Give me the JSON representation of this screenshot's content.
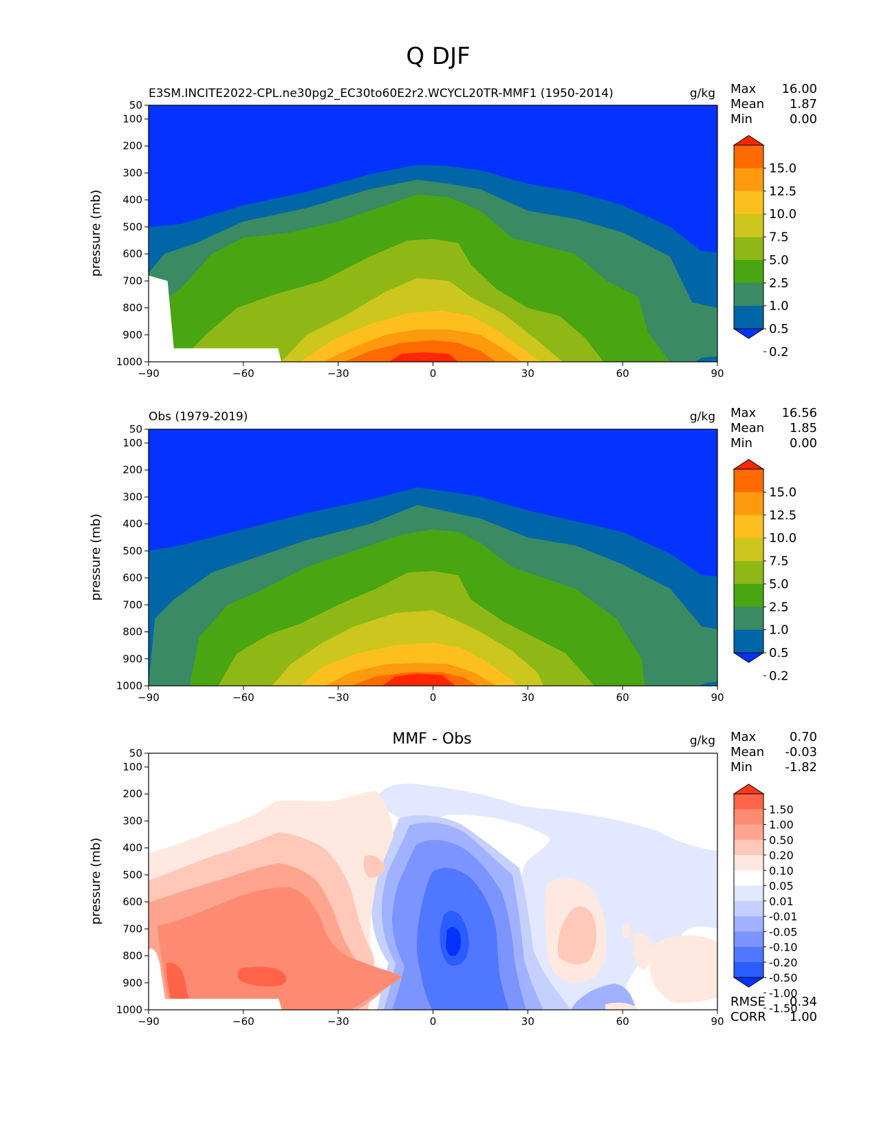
{
  "figure": {
    "title": "Q DJF"
  },
  "colors": {
    "sequential": [
      "#0433ff",
      "#0066a8",
      "#3a8a63",
      "#49a511",
      "#8fb816",
      "#cdc61d",
      "#fdbf1d",
      "#fe9a0e",
      "#fe6a00",
      "#ff2600"
    ],
    "diverging": [
      "#0433ff",
      "#2a5cff",
      "#5077ff",
      "#7b94ff",
      "#a0b2ff",
      "#c5d0ff",
      "#e2e8ff",
      "#ffffff",
      "#ffe8e0",
      "#ffc8b8",
      "#ffa58f",
      "#ff8a72",
      "#ff6449",
      "#ff3a1f"
    ],
    "missing": "#ffffff"
  },
  "chart_data": [
    {
      "type": "heatmap",
      "title": "E3SM.INCITE2022-CPL.ne30pg2_EC30to60E2r2.WCYCL20TR-MMF1 (1950-2014)",
      "units": "g/kg",
      "ylabel": "pressure (mb)",
      "x_ticks": [
        "−90",
        "−60",
        "−30",
        "0",
        "30",
        "60",
        "90"
      ],
      "y_ticks": [
        "50",
        "100",
        "200",
        "300",
        "400",
        "500",
        "600",
        "700",
        "800",
        "900",
        "1000"
      ],
      "xlim": [
        -90,
        90
      ],
      "ylim": [
        1000,
        50
      ],
      "stats": {
        "max_label": "Max",
        "max": "16.00",
        "mean_label": "Mean",
        "mean": "1.87",
        "min_label": "Min",
        "min": "0.00"
      },
      "colorbar_labels": [
        "15.0",
        "12.5",
        "10.0",
        "7.5",
        "5.0",
        "2.5",
        "1.0",
        "0.5",
        "0.2"
      ],
      "levels": [
        0.2,
        0.5,
        1.0,
        2.5,
        5.0,
        7.5,
        10.0,
        12.5,
        15.0
      ],
      "contours": [
        {
          "level": 0.2,
          "boundary": [
            [
              -90,
              500
            ],
            [
              -80,
              490
            ],
            [
              -60,
              420
            ],
            [
              -40,
              370
            ],
            [
              -20,
              305
            ],
            [
              -5,
              270
            ],
            [
              5,
              275
            ],
            [
              15,
              290
            ],
            [
              30,
              340
            ],
            [
              45,
              370
            ],
            [
              60,
              420
            ],
            [
              75,
              500
            ],
            [
              85,
              590
            ],
            [
              90,
              595
            ]
          ]
        },
        {
          "level": 0.5,
          "boundary": [
            [
              -90,
              670
            ],
            [
              -85,
              600
            ],
            [
              -75,
              560
            ],
            [
              -60,
              480
            ],
            [
              -40,
              430
            ],
            [
              -20,
              360
            ],
            [
              -5,
              325
            ],
            [
              5,
              340
            ],
            [
              15,
              360
            ],
            [
              30,
              440
            ],
            [
              45,
              470
            ],
            [
              60,
              520
            ],
            [
              75,
              610
            ],
            [
              82,
              780
            ],
            [
              90,
              800
            ]
          ]
        },
        {
          "level": 1.0,
          "boundary": [
            [
              -90,
              1000
            ],
            [
              -87,
              1000
            ],
            [
              -86,
              780
            ],
            [
              -80,
              730
            ],
            [
              -70,
              600
            ],
            [
              -60,
              540
            ],
            [
              -45,
              520
            ],
            [
              -30,
              480
            ],
            [
              -15,
              420
            ],
            [
              -5,
              380
            ],
            [
              5,
              390
            ],
            [
              15,
              440
            ],
            [
              25,
              540
            ],
            [
              35,
              570
            ],
            [
              45,
              600
            ],
            [
              55,
              700
            ],
            [
              65,
              760
            ],
            [
              68,
              890
            ],
            [
              75,
              1000
            ]
          ]
        },
        {
          "level": 2.5,
          "boundary": [
            [
              -80,
              1000
            ],
            [
              -72,
              900
            ],
            [
              -62,
              800
            ],
            [
              -50,
              750
            ],
            [
              -35,
              700
            ],
            [
              -20,
              610
            ],
            [
              -8,
              550
            ],
            [
              0,
              545
            ],
            [
              8,
              560
            ],
            [
              12,
              640
            ],
            [
              20,
              730
            ],
            [
              30,
              800
            ],
            [
              40,
              830
            ],
            [
              48,
              910
            ],
            [
              54,
              1000
            ]
          ]
        },
        {
          "level": 5.0,
          "boundary": [
            [
              -48,
              1000
            ],
            [
              -40,
              900
            ],
            [
              -28,
              830
            ],
            [
              -15,
              740
            ],
            [
              -5,
              690
            ],
            [
              5,
              700
            ],
            [
              12,
              760
            ],
            [
              22,
              820
            ],
            [
              33,
              920
            ],
            [
              41,
              1000
            ]
          ]
        },
        {
          "level": 7.5,
          "boundary": [
            [
              -42,
              1000
            ],
            [
              -32,
              920
            ],
            [
              -20,
              860
            ],
            [
              -8,
              820
            ],
            [
              3,
              810
            ],
            [
              12,
              830
            ],
            [
              20,
              880
            ],
            [
              27,
              940
            ],
            [
              34,
              1000
            ]
          ]
        },
        {
          "level": 10.0,
          "boundary": [
            [
              -35,
              1000
            ],
            [
              -26,
              950
            ],
            [
              -15,
              900
            ],
            [
              -5,
              880
            ],
            [
              5,
              880
            ],
            [
              15,
              900
            ],
            [
              22,
              950
            ],
            [
              28,
              1000
            ]
          ]
        },
        {
          "level": 12.5,
          "boundary": [
            [
              -28,
              1000
            ],
            [
              -20,
              960
            ],
            [
              -10,
              930
            ],
            [
              0,
              920
            ],
            [
              8,
              930
            ],
            [
              15,
              960
            ],
            [
              20,
              1000
            ]
          ]
        },
        {
          "level": 15.0,
          "boundary": [
            [
              -14,
              1000
            ],
            [
              -10,
              970
            ],
            [
              -3,
              965
            ],
            [
              5,
              970
            ],
            [
              8,
              1000
            ]
          ]
        }
      ]
    },
    {
      "type": "heatmap",
      "title": "Obs (1979-2019)",
      "units": "g/kg",
      "ylabel": "pressure (mb)",
      "x_ticks": [
        "−90",
        "−60",
        "−30",
        "0",
        "30",
        "60",
        "90"
      ],
      "y_ticks": [
        "50",
        "100",
        "200",
        "300",
        "400",
        "500",
        "600",
        "700",
        "800",
        "900",
        "1000"
      ],
      "xlim": [
        -90,
        90
      ],
      "ylim": [
        1000,
        50
      ],
      "stats": {
        "max_label": "Max",
        "max": "16.56",
        "mean_label": "Mean",
        "mean": "1.85",
        "min_label": "Min",
        "min": "0.00"
      },
      "colorbar_labels": [
        "15.0",
        "12.5",
        "10.0",
        "7.5",
        "5.0",
        "2.5",
        "1.0",
        "0.5",
        "0.2"
      ],
      "levels": [
        0.2,
        0.5,
        1.0,
        2.5,
        5.0,
        7.5,
        10.0,
        12.5,
        15.0
      ],
      "contours": [
        {
          "level": 0.2,
          "boundary": [
            [
              -90,
              500
            ],
            [
              -80,
              480
            ],
            [
              -60,
              420
            ],
            [
              -40,
              360
            ],
            [
              -20,
              310
            ],
            [
              -5,
              265
            ],
            [
              5,
              280
            ],
            [
              15,
              300
            ],
            [
              30,
              350
            ],
            [
              45,
              390
            ],
            [
              60,
              430
            ],
            [
              75,
              510
            ],
            [
              85,
              590
            ],
            [
              90,
              595
            ]
          ]
        },
        {
          "level": 0.5,
          "boundary": [
            [
              -90,
              1000
            ],
            [
              -88,
              750
            ],
            [
              -82,
              680
            ],
            [
              -70,
              580
            ],
            [
              -55,
              520
            ],
            [
              -40,
              460
            ],
            [
              -20,
              400
            ],
            [
              -5,
              330
            ],
            [
              5,
              355
            ],
            [
              15,
              380
            ],
            [
              30,
              450
            ],
            [
              45,
              480
            ],
            [
              60,
              550
            ],
            [
              75,
              640
            ],
            [
              85,
              780
            ],
            [
              90,
              790
            ]
          ]
        },
        {
          "level": 1.0,
          "boundary": [
            [
              -77,
              1000
            ],
            [
              -74,
              820
            ],
            [
              -65,
              700
            ],
            [
              -55,
              650
            ],
            [
              -40,
              560
            ],
            [
              -25,
              500
            ],
            [
              -10,
              440
            ],
            [
              0,
              420
            ],
            [
              8,
              430
            ],
            [
              15,
              470
            ],
            [
              25,
              560
            ],
            [
              35,
              600
            ],
            [
              45,
              640
            ],
            [
              58,
              750
            ],
            [
              66,
              900
            ],
            [
              67,
              1000
            ]
          ]
        },
        {
          "level": 2.5,
          "boundary": [
            [
              -68,
              1000
            ],
            [
              -62,
              880
            ],
            [
              -52,
              810
            ],
            [
              -42,
              770
            ],
            [
              -30,
              700
            ],
            [
              -18,
              640
            ],
            [
              -8,
              580
            ],
            [
              0,
              575
            ],
            [
              8,
              590
            ],
            [
              12,
              680
            ],
            [
              22,
              760
            ],
            [
              32,
              820
            ],
            [
              42,
              880
            ],
            [
              51,
              1000
            ]
          ]
        },
        {
          "level": 5.0,
          "boundary": [
            [
              -51,
              1000
            ],
            [
              -45,
              920
            ],
            [
              -35,
              840
            ],
            [
              -25,
              780
            ],
            [
              -12,
              730
            ],
            [
              0,
              720
            ],
            [
              8,
              760
            ],
            [
              15,
              800
            ],
            [
              25,
              870
            ],
            [
              33,
              950
            ],
            [
              35,
              1000
            ]
          ]
        },
        {
          "level": 7.5,
          "boundary": [
            [
              -42,
              1000
            ],
            [
              -35,
              930
            ],
            [
              -24,
              880
            ],
            [
              -12,
              850
            ],
            [
              0,
              840
            ],
            [
              9,
              860
            ],
            [
              17,
              910
            ],
            [
              24,
              970
            ],
            [
              27,
              1000
            ]
          ]
        },
        {
          "level": 10.0,
          "boundary": [
            [
              -34,
              1000
            ],
            [
              -26,
              950
            ],
            [
              -15,
              920
            ],
            [
              -5,
              915
            ],
            [
              5,
              920
            ],
            [
              13,
              950
            ],
            [
              20,
              1000
            ]
          ]
        },
        {
          "level": 12.5,
          "boundary": [
            [
              -26,
              1000
            ],
            [
              -18,
              965
            ],
            [
              -8,
              950
            ],
            [
              3,
              950
            ],
            [
              10,
              970
            ],
            [
              14,
              1000
            ]
          ]
        },
        {
          "level": 15.0,
          "boundary": [
            [
              -16,
              1000
            ],
            [
              -12,
              965
            ],
            [
              -5,
              955
            ],
            [
              3,
              960
            ],
            [
              7,
              1000
            ]
          ]
        }
      ]
    },
    {
      "type": "heatmap",
      "title": "MMF - Obs",
      "units": "g/kg",
      "ylabel": "pressure (mb)",
      "x_ticks": [
        "−90",
        "−60",
        "−30",
        "0",
        "30",
        "60",
        "90"
      ],
      "y_ticks": [
        "50",
        "100",
        "200",
        "300",
        "400",
        "500",
        "600",
        "700",
        "800",
        "900",
        "1000"
      ],
      "xlim": [
        -90,
        90
      ],
      "ylim": [
        1000,
        50
      ],
      "stats": {
        "max_label": "Max",
        "max": "0.70",
        "mean_label": "Mean",
        "mean": "-0.03",
        "min_label": "Min",
        "min": "-1.82"
      },
      "rmse_label": "RMSE",
      "rmse": "0.34",
      "corr_label": "CORR",
      "corr": "1.00",
      "colorbar_labels": [
        "1.50",
        "1.00",
        "0.50",
        "0.20",
        "0.10",
        "0.05",
        "0.01",
        "-0.01",
        "-0.05",
        "-0.10",
        "-0.20",
        "-0.50",
        "-1.00",
        "-1.50"
      ],
      "levels": [
        -1.5,
        -1.0,
        -0.5,
        -0.2,
        -0.1,
        -0.05,
        -0.01,
        0.01,
        0.05,
        0.1,
        0.2,
        0.5,
        1.0,
        1.5
      ]
    }
  ]
}
